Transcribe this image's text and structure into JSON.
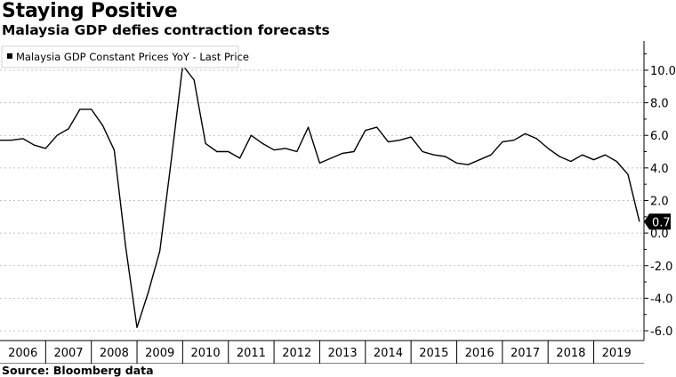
{
  "title": "Staying Positive",
  "subtitle": "Malaysia GDP defies contraction forecasts",
  "source": "Source: Bloomberg data",
  "chart_data": {
    "type": "line",
    "legend": "Malaysia GDP Constant Prices YoY - Last Price",
    "legend_position": "top-left",
    "last_value_label": "0.7",
    "x_ticks": [
      "2006",
      "2007",
      "2008",
      "2009",
      "2010",
      "2011",
      "2012",
      "2013",
      "2014",
      "2015",
      "2016",
      "2017",
      "2018",
      "2019"
    ],
    "y_ticks": [
      "10.0",
      "8.0",
      "6.0",
      "4.0",
      "2.0",
      "0.0",
      "-2.0",
      "-4.0",
      "-6.0"
    ],
    "ylim": [
      -6.6,
      11.8
    ],
    "xlim": [
      2006.0,
      2020.1
    ],
    "grid": "y-dashed",
    "colors": {
      "line": "#000000",
      "grid": "#b0b0b0",
      "label_bg": "#000000",
      "label_fg": "#ffffff"
    },
    "series": [
      {
        "x": [
          2006.0,
          2006.25,
          2006.5,
          2006.75,
          2007.0,
          2007.25,
          2007.5,
          2007.75,
          2008.0,
          2008.25,
          2008.5,
          2008.75,
          2009.0,
          2009.25,
          2009.5,
          2009.75,
          2010.0,
          2010.25,
          2010.5,
          2010.75,
          2011.0,
          2011.25,
          2011.5,
          2011.75,
          2012.0,
          2012.25,
          2012.5,
          2012.75,
          2013.0,
          2013.25,
          2013.5,
          2013.75,
          2014.0,
          2014.25,
          2014.5,
          2014.75,
          2015.0,
          2015.25,
          2015.5,
          2015.75,
          2016.0,
          2016.25,
          2016.5,
          2016.75,
          2017.0,
          2017.25,
          2017.5,
          2017.75,
          2018.0,
          2018.25,
          2018.5,
          2018.75,
          2019.0,
          2019.25,
          2019.5,
          2019.75,
          2020.0
        ],
        "values": [
          5.7,
          5.7,
          5.8,
          5.4,
          5.2,
          6.0,
          6.4,
          7.6,
          7.6,
          6.6,
          5.1,
          -0.8,
          -5.8,
          -3.6,
          -1.1,
          4.5,
          10.3,
          9.4,
          5.5,
          5.0,
          5.0,
          4.6,
          6.0,
          5.5,
          5.1,
          5.2,
          5.0,
          6.5,
          4.3,
          4.6,
          4.9,
          5.0,
          6.3,
          6.5,
          5.6,
          5.7,
          5.9,
          5.0,
          4.8,
          4.7,
          4.3,
          4.2,
          4.5,
          4.8,
          5.6,
          5.7,
          6.1,
          5.8,
          5.2,
          4.7,
          4.4,
          4.8,
          4.5,
          4.8,
          4.4,
          3.6,
          0.7
        ]
      }
    ]
  }
}
